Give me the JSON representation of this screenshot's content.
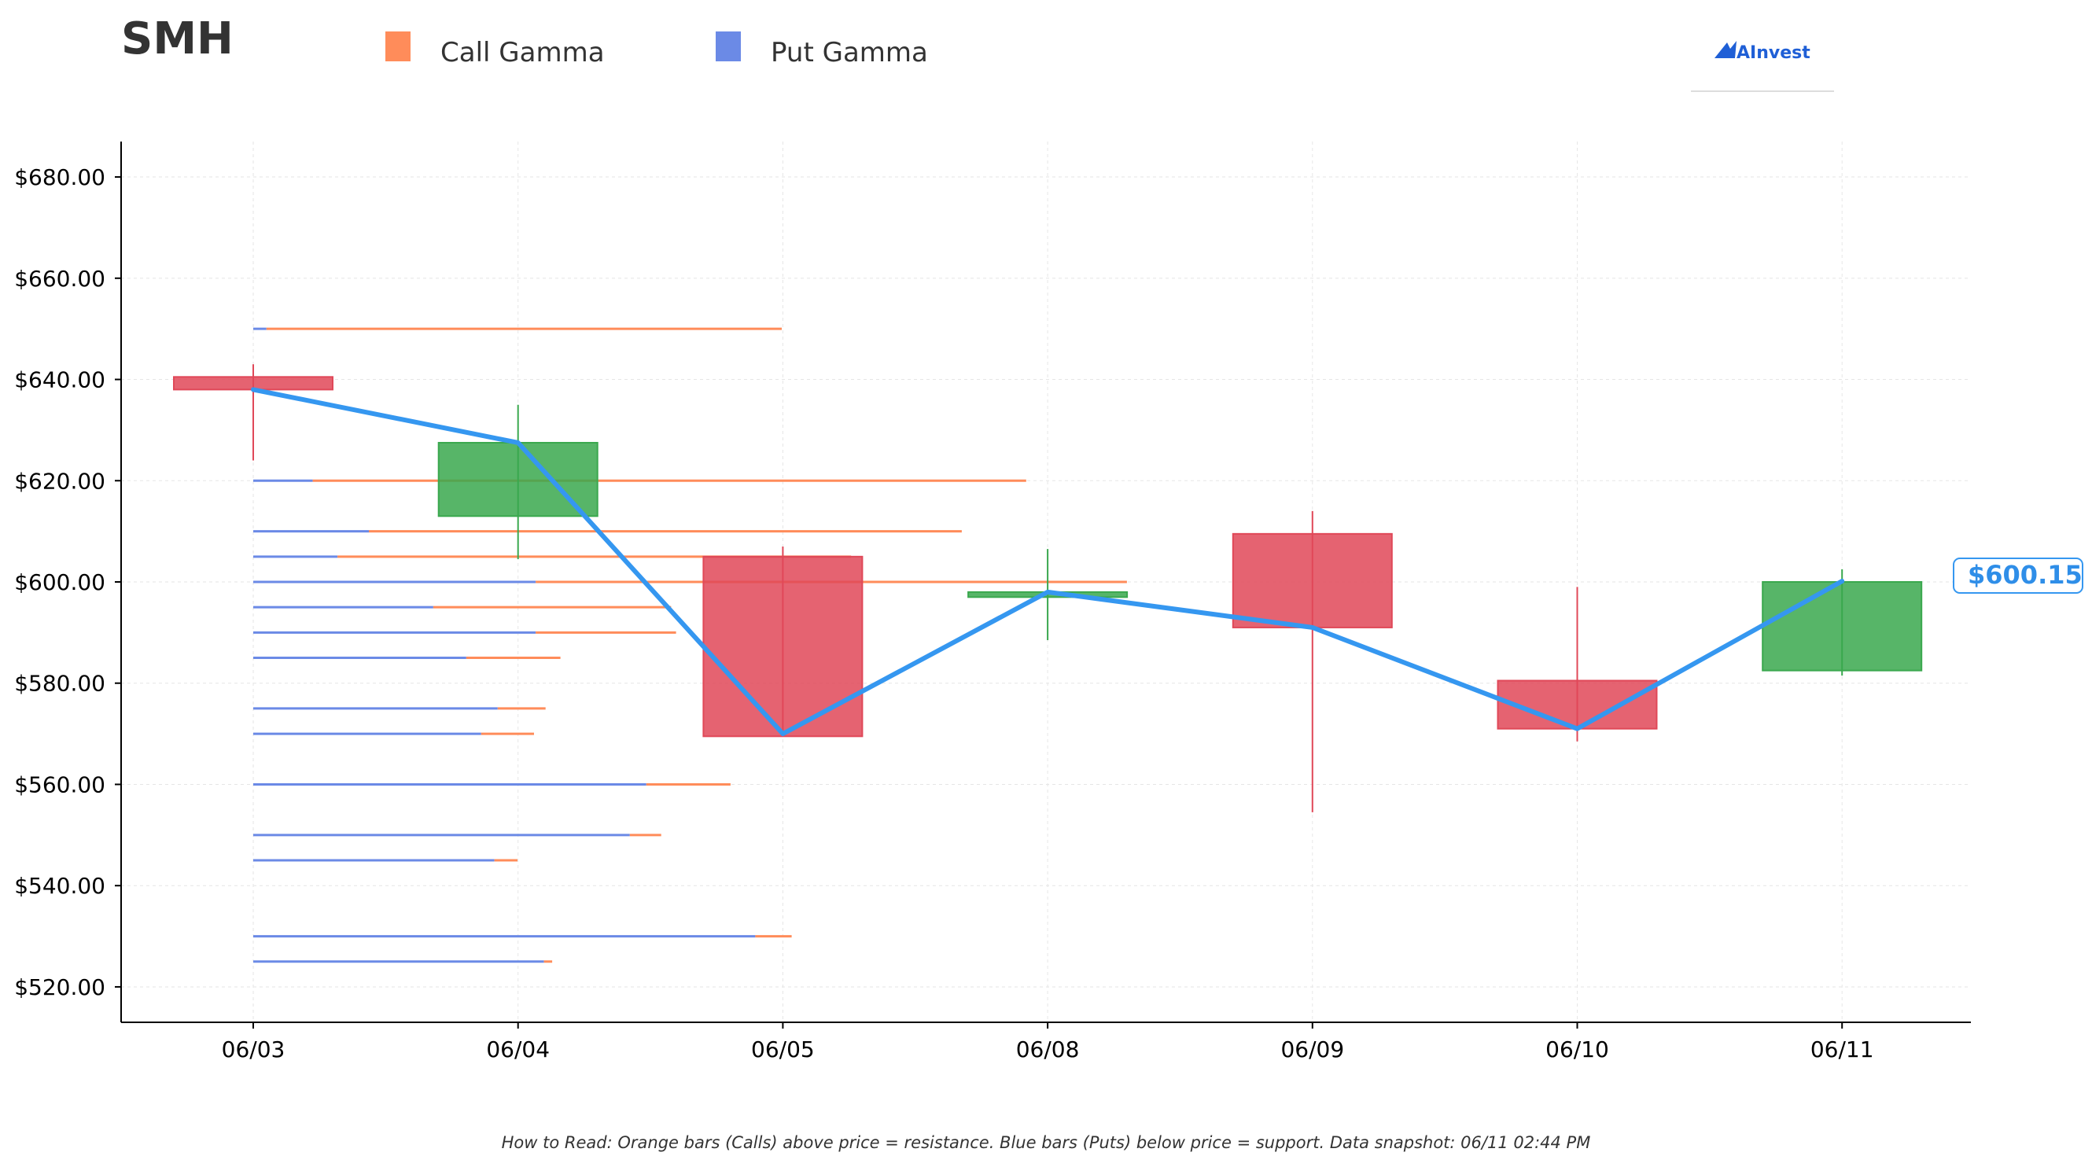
{
  "header": {
    "ticker": "SMH",
    "legend": [
      {
        "label": "Call Gamma",
        "color": "#ff8c5a",
        "icon": "square-swatch"
      },
      {
        "label": "Put Gamma",
        "color": "#6b8ae6",
        "icon": "square-swatch"
      }
    ],
    "brand": {
      "name": "AInvest",
      "icon": "ainvest-logo-icon"
    }
  },
  "footnote": "How to Read: Orange bars (Calls) above price = resistance. Blue bars (Puts) below price = support. Data snapshot: 06/11 02:44 PM",
  "colors": {
    "up": "#3aa84e",
    "down": "#e04858",
    "price_line": "#3597f0",
    "call": "#ff8c5a",
    "put": "#6b8ae6",
    "grid": "#e6e6e6"
  },
  "chart_data": {
    "type": "candlestick",
    "title": "SMH",
    "xlabel": "",
    "ylabel": "",
    "ylim": [
      513,
      687
    ],
    "y_ticks": [
      520,
      540,
      560,
      580,
      600,
      620,
      640,
      660,
      680
    ],
    "y_tick_labels": [
      "$520.00",
      "$540.00",
      "$560.00",
      "$580.00",
      "$600.00",
      "$620.00",
      "$640.00",
      "$660.00",
      "$680.00"
    ],
    "grid": true,
    "legend_position": "top-left",
    "categories": [
      "06/03",
      "06/04",
      "06/05",
      "06/08",
      "06/09",
      "06/10",
      "06/11"
    ],
    "candles": [
      {
        "date": "06/03",
        "open": 640.5,
        "high": 643.0,
        "low": 624.0,
        "close": 638.0
      },
      {
        "date": "06/04",
        "open": 613.0,
        "high": 635.0,
        "low": 604.5,
        "close": 627.5
      },
      {
        "date": "06/05",
        "open": 605.0,
        "high": 607.0,
        "low": 570.0,
        "close": 569.5
      },
      {
        "date": "06/08",
        "open": 597.0,
        "high": 606.5,
        "low": 588.5,
        "close": 598.0
      },
      {
        "date": "06/09",
        "open": 609.5,
        "high": 614.0,
        "low": 554.5,
        "close": 591.0
      },
      {
        "date": "06/10",
        "open": 580.5,
        "high": 599.0,
        "low": 568.5,
        "close": 571.0
      },
      {
        "date": "06/11",
        "open": 582.5,
        "high": 602.5,
        "low": 581.5,
        "close": 600.0
      }
    ],
    "price_line": {
      "name": "Price",
      "values": [
        638.0,
        627.5,
        570.0,
        598.0,
        591.0,
        571.0,
        600.15
      ]
    },
    "last_price_label": "$600.15",
    "gamma_levels": [
      {
        "strike": 650,
        "put": 0.08,
        "call": 3.12
      },
      {
        "strike": 620,
        "put": 0.36,
        "call": 4.32
      },
      {
        "strike": 610,
        "put": 0.7,
        "call": 3.59
      },
      {
        "strike": 605,
        "put": 0.51,
        "call": 3.11
      },
      {
        "strike": 600,
        "put": 1.71,
        "call": 3.58
      },
      {
        "strike": 595,
        "put": 1.09,
        "call": 1.44
      },
      {
        "strike": 590,
        "put": 1.71,
        "call": 0.85
      },
      {
        "strike": 585,
        "put": 1.29,
        "call": 0.57
      },
      {
        "strike": 575,
        "put": 1.48,
        "call": 0.29
      },
      {
        "strike": 570,
        "put": 1.38,
        "call": 0.32
      },
      {
        "strike": 560,
        "put": 2.38,
        "call": 0.51
      },
      {
        "strike": 550,
        "put": 2.28,
        "call": 0.19
      },
      {
        "strike": 545,
        "put": 1.46,
        "call": 0.14
      },
      {
        "strike": 530,
        "put": 3.04,
        "call": 0.22
      },
      {
        "strike": 525,
        "put": 1.76,
        "call": 0.05
      }
    ]
  }
}
